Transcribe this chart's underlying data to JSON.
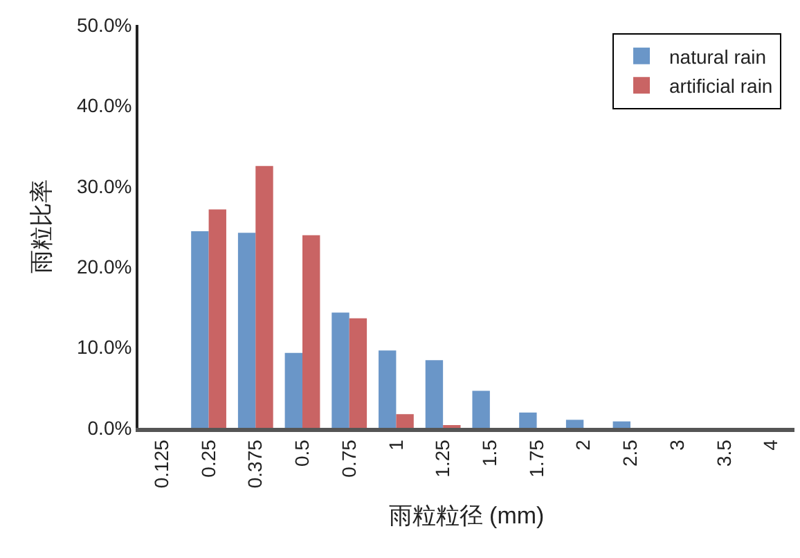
{
  "chart_data": {
    "type": "bar",
    "xlabel": "雨粒粒径 (mm)",
    "ylabel": "雨粒比率",
    "categories": [
      "0.125",
      "0.25",
      "0.375",
      "0.5",
      "0.75",
      "1",
      "1.25",
      "1.5",
      "1.75",
      "2",
      "2.5",
      "3",
      "3.5",
      "4"
    ],
    "series": [
      {
        "name": "natural rain",
        "color": "#6a96c8",
        "values": [
          0,
          24.4,
          24.2,
          9.3,
          14.3,
          9.6,
          8.4,
          4.6,
          1.9,
          1.0,
          0.8,
          0,
          0,
          0
        ]
      },
      {
        "name": "artificial rain",
        "color": "#c96464",
        "values": [
          0,
          27.1,
          32.5,
          23.9,
          13.6,
          1.7,
          0.2,
          0,
          0,
          0,
          0,
          0,
          0,
          0
        ]
      }
    ],
    "ylim": [
      0,
      50
    ],
    "yticks": [
      {
        "value": 0,
        "label": "0.0%"
      },
      {
        "value": 10,
        "label": "10.0%"
      },
      {
        "value": 20,
        "label": "20.0%"
      },
      {
        "value": 30,
        "label": "30.0%"
      },
      {
        "value": 40,
        "label": "40.0%"
      },
      {
        "value": 50,
        "label": "50.0%"
      }
    ],
    "legend": "top right"
  }
}
